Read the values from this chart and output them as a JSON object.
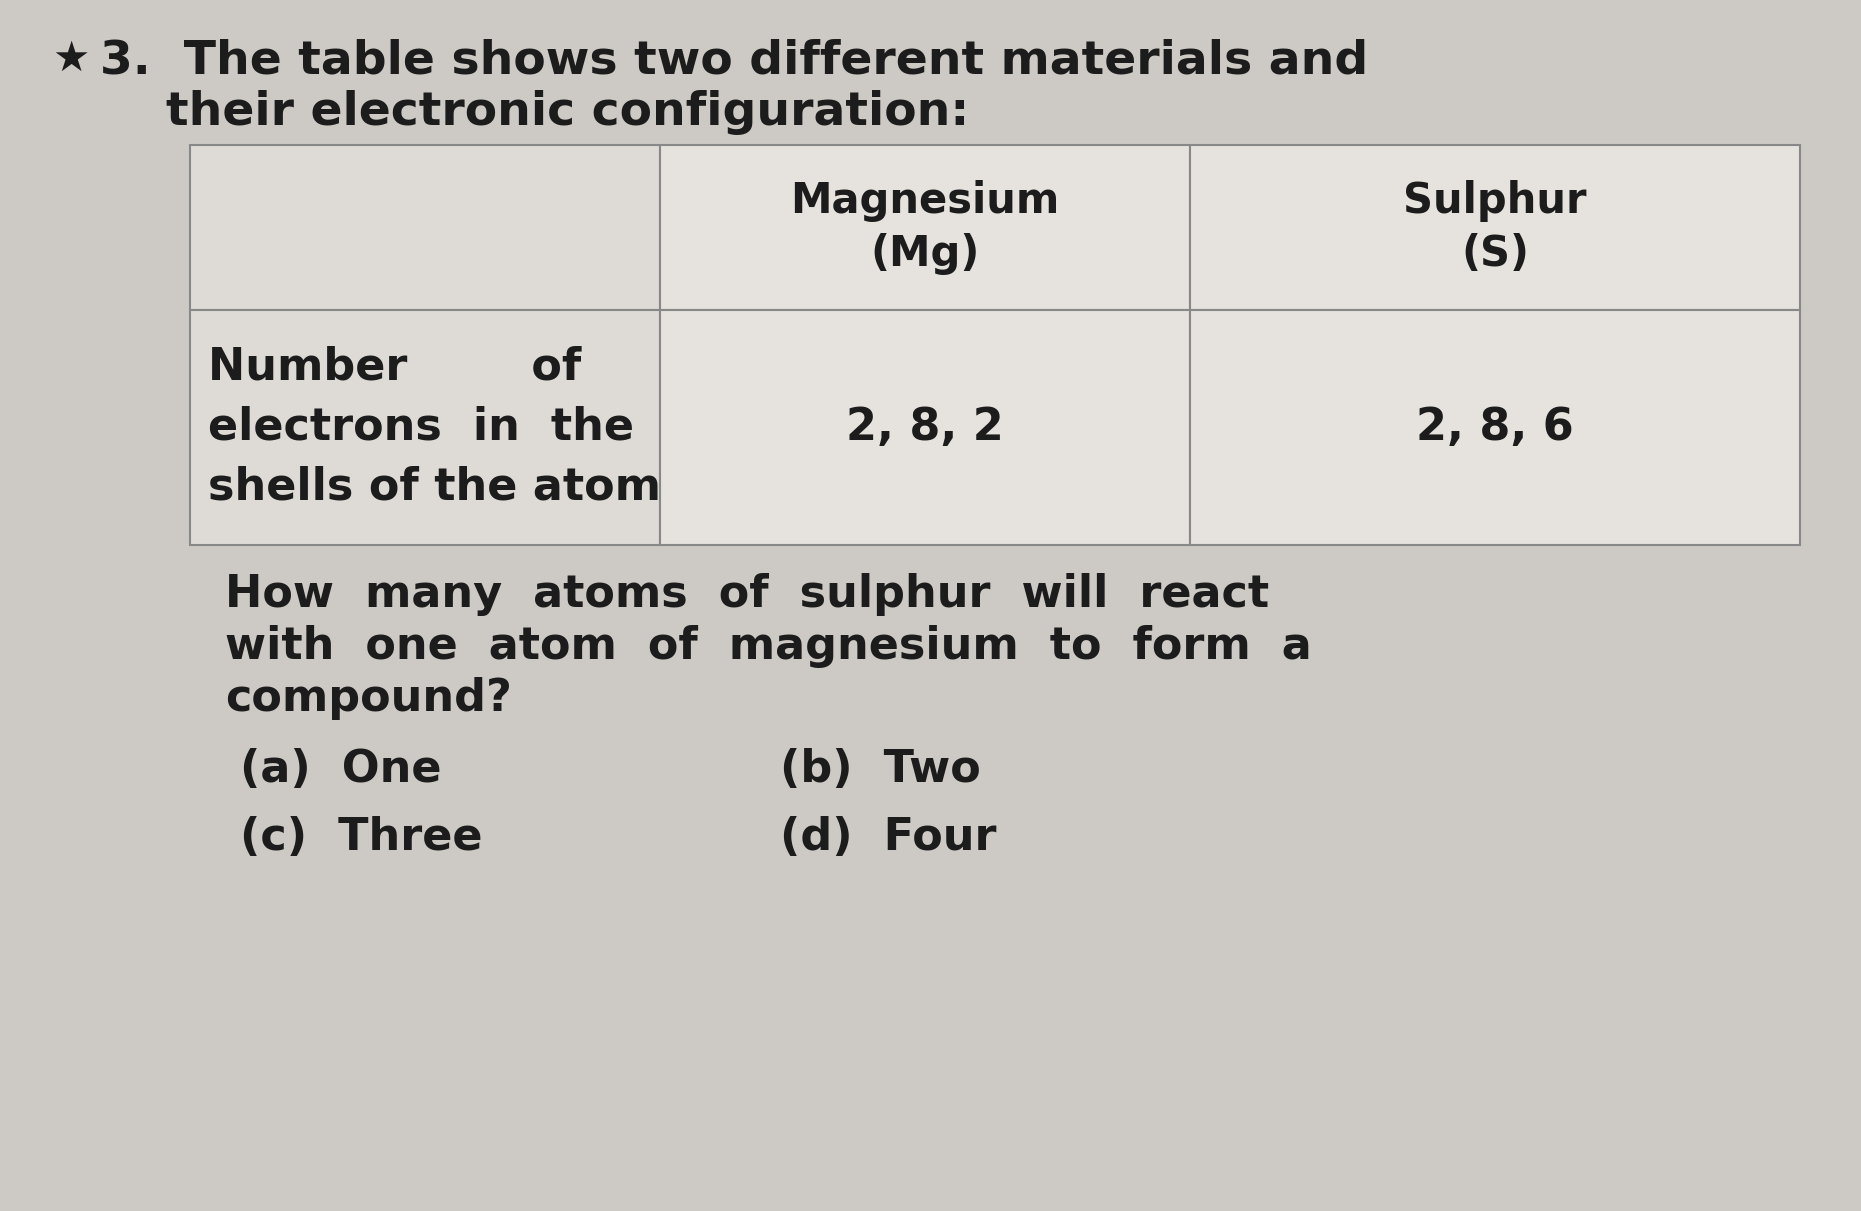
{
  "bg_color": "#cdc9c4",
  "title_line1": "3.  The table shows two different materials and",
  "title_line2": "    their electronic configuration:",
  "star_symbol": "★",
  "table_header_col2": "Magnesium\n(Mg)",
  "table_header_col3": "Sulphur\n(S)",
  "table_row_label_line1": "Number        of",
  "table_row_label_line2": "electrons  in  the",
  "table_row_label_line3": "shells of the atom",
  "table_row_val1": "2, 8, 2",
  "table_row_val2": "2, 8, 6",
  "question_line1": "How  many  atoms  of  sulphur  will  react",
  "question_line2": "with  one  atom  of  magnesium  to  form  a",
  "question_line3": "compound?",
  "option_a": "(a)  One",
  "option_b": "(b)  Two",
  "option_c": "(c)  Three",
  "option_d": "(d)  Four",
  "text_color": "#1c1c1c",
  "table_border": "#888888",
  "cell_bg_empty": "#dedad5",
  "cell_bg_data": "#e6e2dd",
  "font_size_title": 34,
  "font_size_table_header": 30,
  "font_size_table_data": 32,
  "font_size_question": 32,
  "font_size_options": 32,
  "font_size_star": 30
}
